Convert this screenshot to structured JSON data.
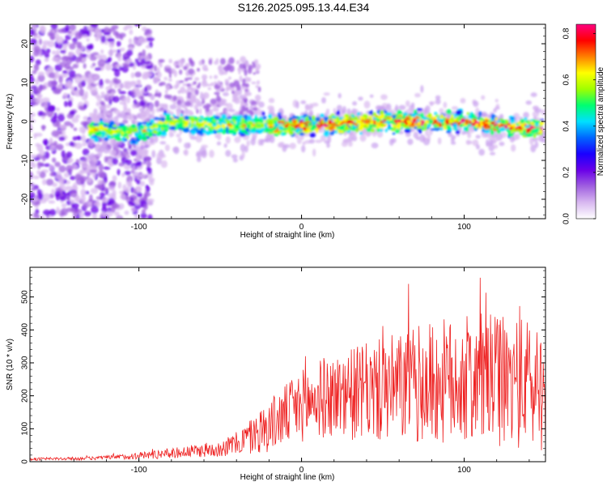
{
  "title": "S126.2025.095.13.44.E34",
  "chart_data": [
    {
      "type": "heatmap",
      "xlabel": "Height of straight line (km)",
      "ylabel": "Frequency (Hz)",
      "xlim": [
        -167,
        150
      ],
      "ylim": [
        -25,
        25
      ],
      "x_ticks": [
        -100,
        0,
        100
      ],
      "y_ticks": [
        -20,
        -10,
        0,
        10,
        20
      ],
      "colorbar": {
        "label": "Normalized spectral amplitude",
        "range": [
          0.0,
          0.84
        ],
        "ticks": [
          0.0,
          0.2,
          0.4,
          0.6,
          0.8
        ],
        "colors": [
          "#ffffff",
          "#d8b8f0",
          "#a060e0",
          "#6a00e8",
          "#1a00ff",
          "#0066ff",
          "#00e0ff",
          "#00ff70",
          "#a0ff00",
          "#ffff00",
          "#ff8000",
          "#ff0000",
          "#ff0080"
        ]
      },
      "ridge_center_hz": [
        {
          "x": -130,
          "y": -2
        },
        {
          "x": -100,
          "y": -3
        },
        {
          "x": -80,
          "y": 0
        },
        {
          "x": -50,
          "y": -1
        },
        {
          "x": -20,
          "y": -1
        },
        {
          "x": 0,
          "y": -1
        },
        {
          "x": 50,
          "y": 0
        },
        {
          "x": 100,
          "y": 0
        },
        {
          "x": 145,
          "y": -2
        }
      ]
    },
    {
      "type": "line",
      "xlabel": "Height of straight line (km)",
      "ylabel": "SNR (10 * v/v)",
      "xlim": [
        -167,
        150
      ],
      "ylim": [
        0,
        590
      ],
      "x_ticks": [
        -100,
        0,
        100
      ],
      "y_ticks": [
        0,
        100,
        200,
        300,
        400,
        500
      ],
      "color": "#ee2222",
      "envelope": {
        "x": [
          -167,
          -130,
          -110,
          -90,
          -70,
          -50,
          -40,
          -30,
          -20,
          -10,
          0,
          10,
          20,
          30,
          40,
          50,
          60,
          70,
          80,
          90,
          100,
          110,
          120,
          130,
          140,
          150
        ],
        "mean": [
          8,
          10,
          15,
          22,
          30,
          40,
          55,
          80,
          110,
          140,
          170,
          190,
          200,
          205,
          210,
          215,
          225,
          230,
          240,
          240,
          245,
          250,
          245,
          240,
          235,
          230
        ],
        "spread": [
          4,
          5,
          8,
          14,
          18,
          25,
          35,
          60,
          80,
          95,
          110,
          120,
          130,
          140,
          150,
          160,
          170,
          180,
          190,
          195,
          200,
          200,
          200,
          200,
          200,
          200
        ]
      }
    }
  ]
}
